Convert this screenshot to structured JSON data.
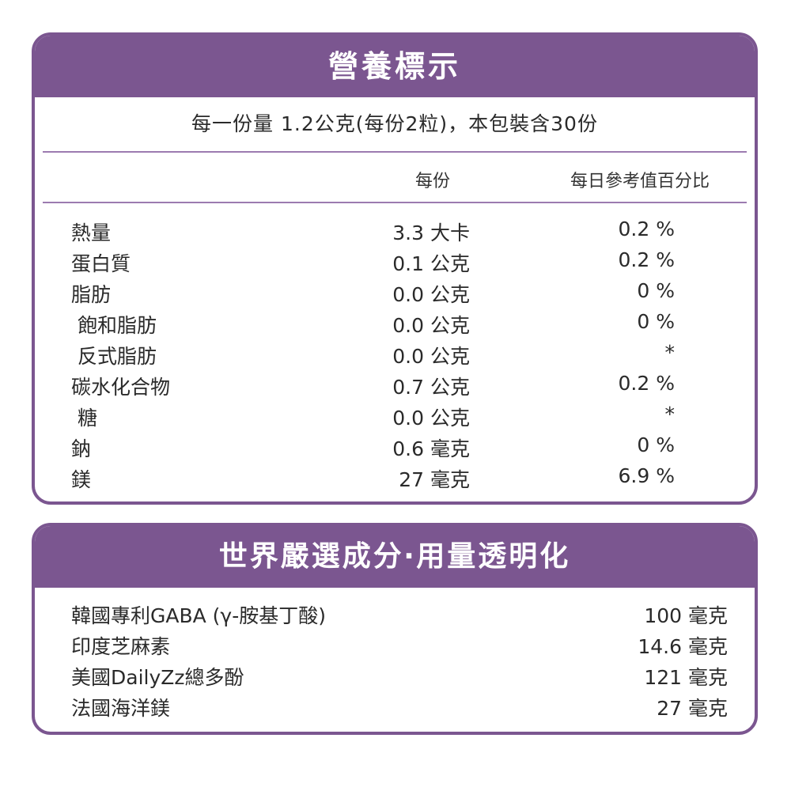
{
  "nutrition": {
    "title": "營養標示",
    "serving_text": "每一份量 1.2公克(每份2粒)，本包裝含30份",
    "col_per_serving": "每份",
    "col_daily_value": "每日參考值百分比",
    "rows": [
      {
        "name": "熱量",
        "amount": "3.3 大卡",
        "dv": "0.2 %"
      },
      {
        "name": "蛋白質",
        "amount": "0.1 公克",
        "dv": "0.2 %"
      },
      {
        "name": "脂肪",
        "amount": "0.0 公克",
        "dv": "0 %"
      },
      {
        "name": " 飽和脂肪",
        "amount": "0.0 公克",
        "dv": "0 %"
      },
      {
        "name": " 反式脂肪",
        "amount": "0.0 公克",
        "dv": "*"
      },
      {
        "name": "碳水化合物",
        "amount": "0.7 公克",
        "dv": "0.2 %"
      },
      {
        "name": " 糖",
        "amount": "0.0 公克",
        "dv": "*"
      },
      {
        "name": "鈉",
        "amount": "0.6 毫克",
        "dv": "0 %"
      },
      {
        "name": "鎂",
        "amount": "27 毫克",
        "dv": "6.9 %"
      }
    ]
  },
  "ingredients": {
    "title": "世界嚴選成分‧用量透明化",
    "rows": [
      {
        "name": "韓國專利GABA (γ-胺基丁酸)",
        "amount": "100 毫克"
      },
      {
        "name": "印度芝麻素",
        "amount": "14.6 毫克"
      },
      {
        "name": "美國DailyZz總多酚",
        "amount": "121 毫克"
      },
      {
        "name": "法國海洋鎂",
        "amount": "27 毫克"
      }
    ]
  },
  "colors": {
    "accent": "#7b5690",
    "rule": "#9c7bb0",
    "text": "#2a2a2a"
  }
}
